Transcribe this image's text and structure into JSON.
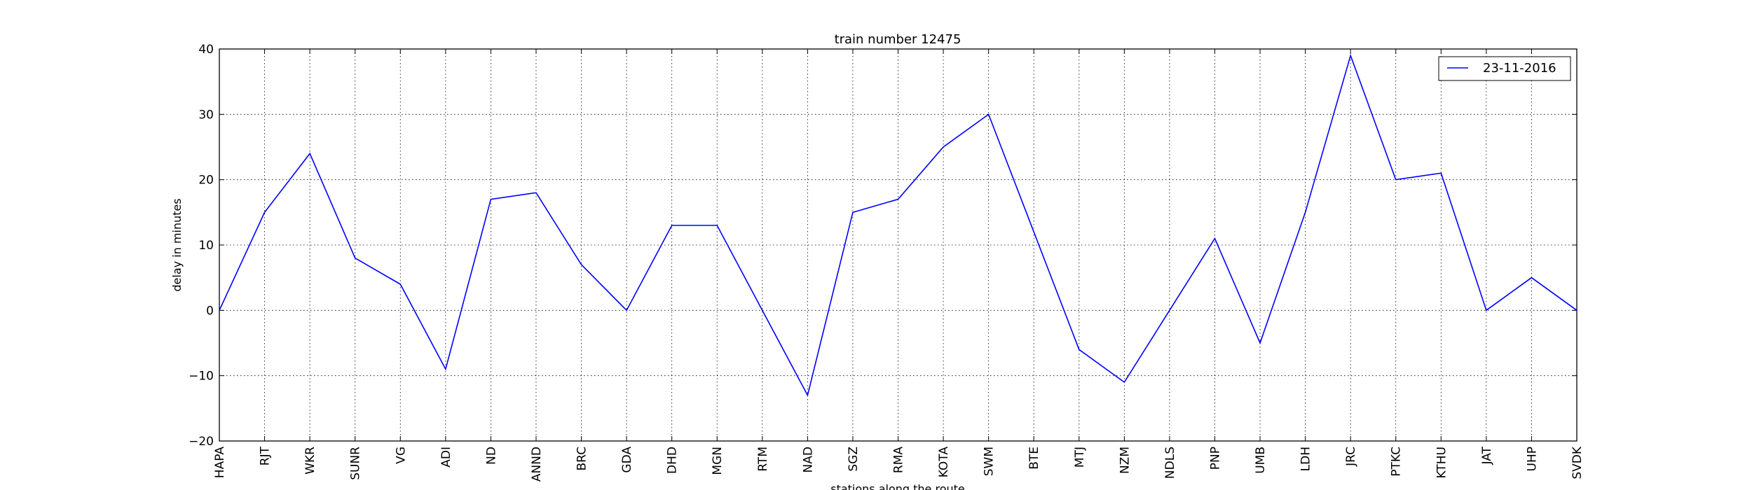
{
  "chart_data": {
    "type": "line",
    "title": "train number 12475",
    "xlabel": "stations along the route",
    "ylabel": "delay in minutes",
    "ylim": [
      -20,
      40
    ],
    "yticks": [
      -20,
      -10,
      0,
      10,
      20,
      30,
      40
    ],
    "grid": true,
    "legend": "top-right",
    "categories": [
      "HAPA",
      "RJT",
      "WKR",
      "SUNR",
      "VG",
      "ADI",
      "ND",
      "ANND",
      "BRC",
      "GDA",
      "DHD",
      "MGN",
      "RTM",
      "NAD",
      "SGZ",
      "RMA",
      "KOTA",
      "SWM",
      "BTE",
      "MTJ",
      "NZM",
      "NDLS",
      "PNP",
      "UMB",
      "LDH",
      "JRC",
      "PTKC",
      "KTHU",
      "JAT",
      "UHP",
      "SVDK"
    ],
    "series": [
      {
        "name": "23-11-2016",
        "color": "#0000ff",
        "values": [
          0,
          15,
          24,
          8,
          4,
          -9,
          17,
          18,
          7,
          0,
          13,
          13,
          0,
          -13,
          15,
          17,
          25,
          30,
          12,
          -6,
          -11,
          0,
          11,
          -5,
          15,
          39,
          20,
          21,
          0,
          5,
          0
        ]
      }
    ]
  }
}
